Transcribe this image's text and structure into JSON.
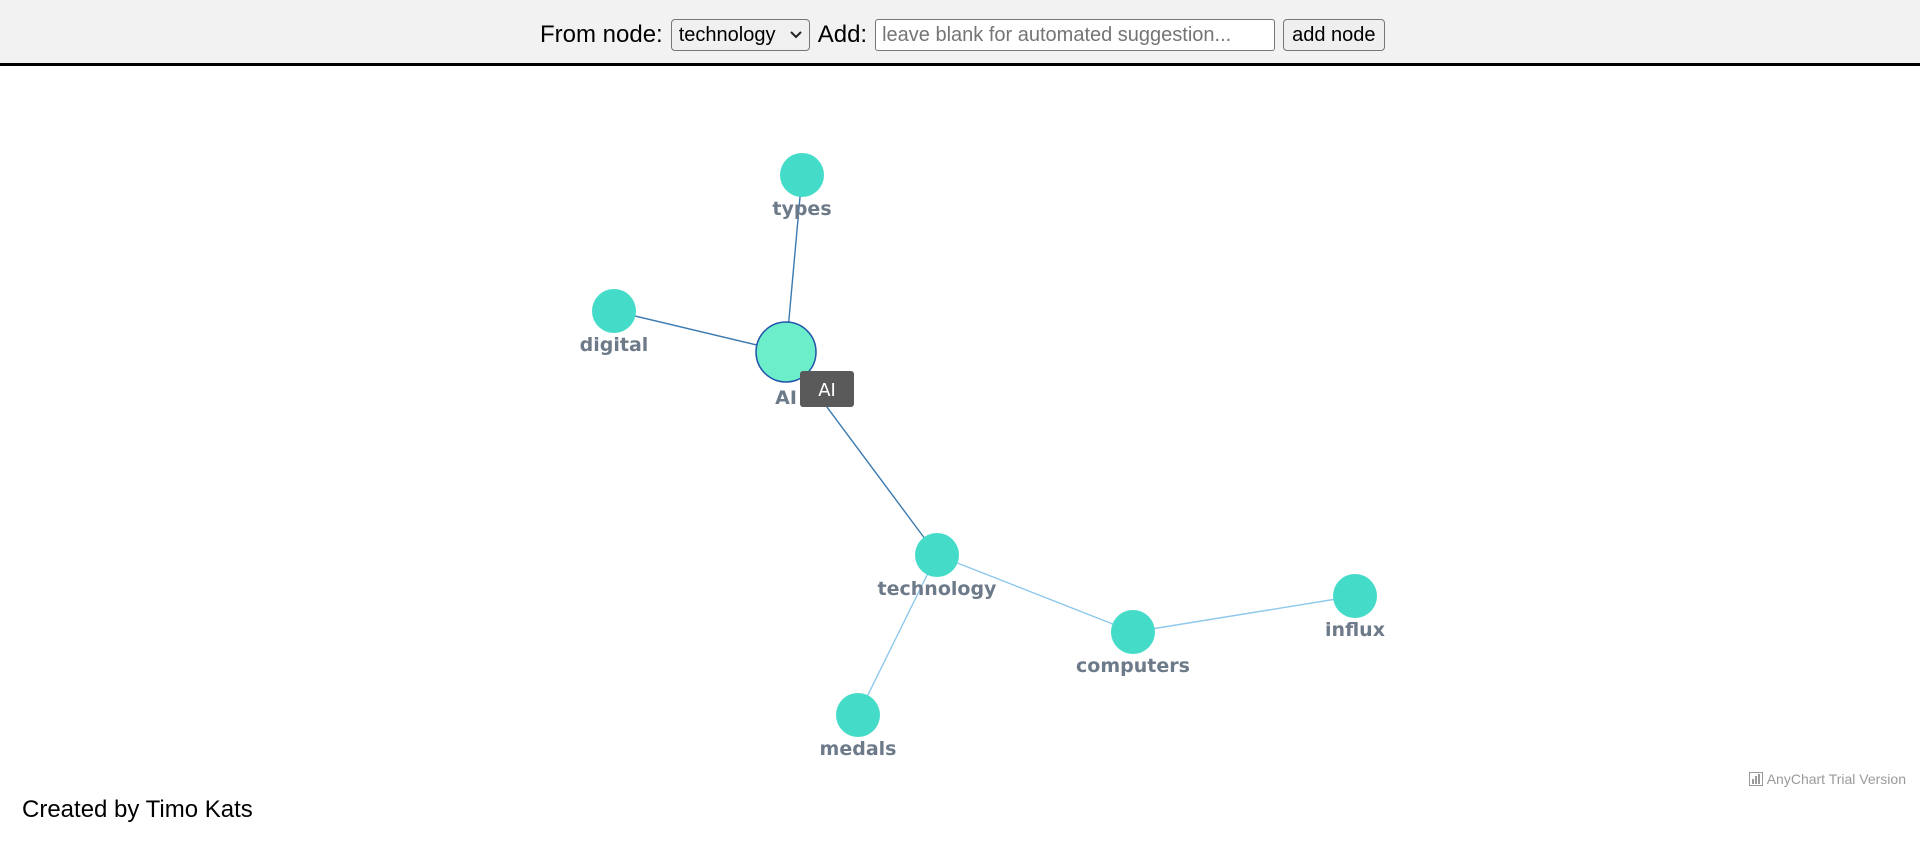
{
  "toolbar": {
    "from_label": "From node:",
    "selected_node": "technology",
    "add_label": "Add:",
    "input_value": "",
    "input_placeholder": "leave blank for automated suggestion...",
    "add_button_label": "add node"
  },
  "graph": {
    "nodes": [
      {
        "id": "types",
        "label": "types"
      },
      {
        "id": "digital",
        "label": "digital"
      },
      {
        "id": "AI",
        "label": "AI",
        "hovered": true
      },
      {
        "id": "technology",
        "label": "technology"
      },
      {
        "id": "computers",
        "label": "computers"
      },
      {
        "id": "influx",
        "label": "influx"
      },
      {
        "id": "medals",
        "label": "medals"
      }
    ],
    "edges": [
      {
        "from": "AI",
        "to": "types"
      },
      {
        "from": "AI",
        "to": "digital"
      },
      {
        "from": "AI",
        "to": "technology"
      },
      {
        "from": "technology",
        "to": "computers"
      },
      {
        "from": "technology",
        "to": "medals"
      },
      {
        "from": "computers",
        "to": "influx"
      }
    ],
    "tooltip": "AI",
    "colors": {
      "node_fill": "#45dbc9",
      "node_hover_fill": "#6ceecb",
      "node_hover_stroke": "#2255aa",
      "edge_dark": "#3a7ab0",
      "edge_light": "#8ec8ec",
      "label": "#6d7a89",
      "tooltip_bg": "#5a5a5a"
    }
  },
  "watermark": "AnyChart Trial Version",
  "footer": "Created by Timo Kats"
}
